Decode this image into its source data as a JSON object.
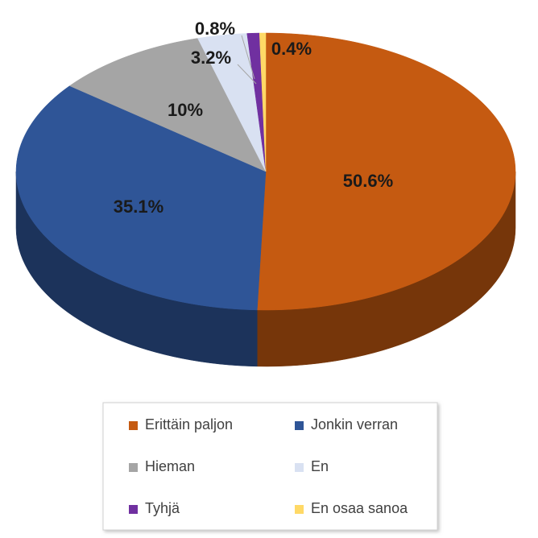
{
  "chart_data": {
    "type": "pie",
    "categories": [
      "Erittäin paljon",
      "Jonkin verran",
      "Hieman",
      "En",
      "Tyhjä",
      "En osaa sanoa"
    ],
    "values": [
      50.6,
      35.1,
      10,
      3.2,
      0.8,
      0.4
    ],
    "value_labels": [
      "50.6%",
      "35.1%",
      "10%",
      "3.2%",
      "0.8%",
      "0.4%"
    ],
    "colors": [
      "#c55a11",
      "#2f5597",
      "#a5a5a5",
      "#d9e1f2",
      "#7030a0",
      "#ffd966"
    ],
    "legend": "bottom"
  }
}
